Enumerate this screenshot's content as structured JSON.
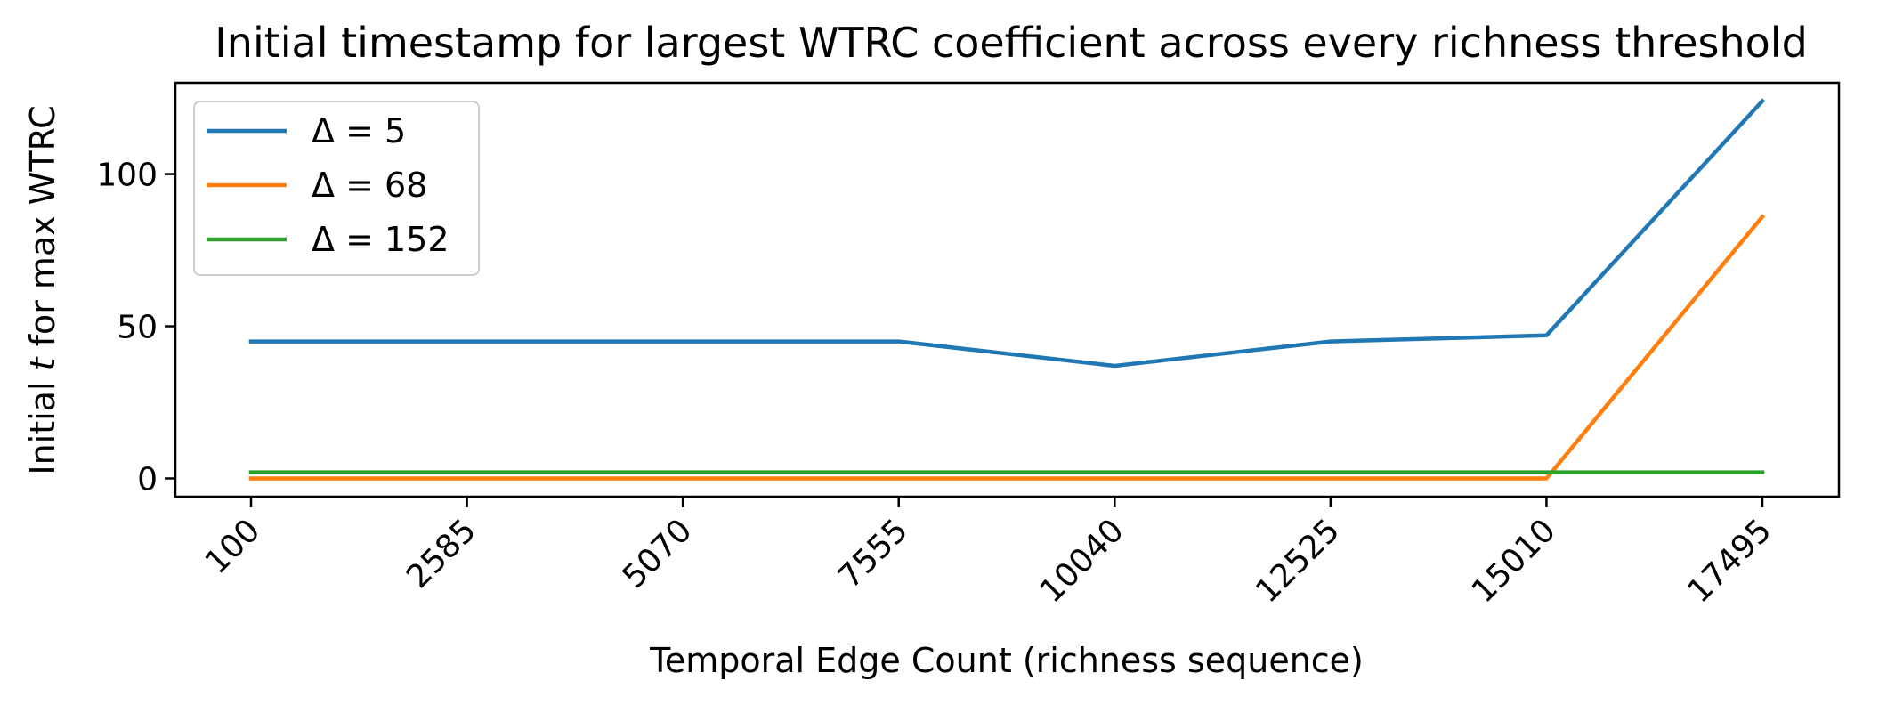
{
  "chart_data": {
    "type": "line",
    "title": "Initial timestamp for largest WTRC coefficient across every richness threshold",
    "xlabel": "Temporal Edge Count (richness sequence)",
    "ylabel": {
      "prefix": "Initial ",
      "var": "t",
      "suffix": " for max WTRC"
    },
    "categories": [
      "100",
      "2585",
      "5070",
      "7555",
      "10040",
      "12525",
      "15010",
      "17495"
    ],
    "ylim": [
      -6,
      130
    ],
    "yticks": [
      "0",
      "50",
      "100"
    ],
    "grid": false,
    "legend_position": "top-left",
    "series": [
      {
        "name": "Δ = 5",
        "color": "#1f77b4",
        "values": [
          45,
          45,
          45,
          45,
          37,
          45,
          47,
          124
        ]
      },
      {
        "name": "Δ = 68",
        "color": "#ff7f0e",
        "values": [
          0,
          0,
          0,
          0,
          0,
          0,
          0,
          86
        ]
      },
      {
        "name": "Δ = 152",
        "color": "#2ca02c",
        "values": [
          2,
          2,
          2,
          2,
          2,
          2,
          2,
          2
        ]
      }
    ]
  }
}
